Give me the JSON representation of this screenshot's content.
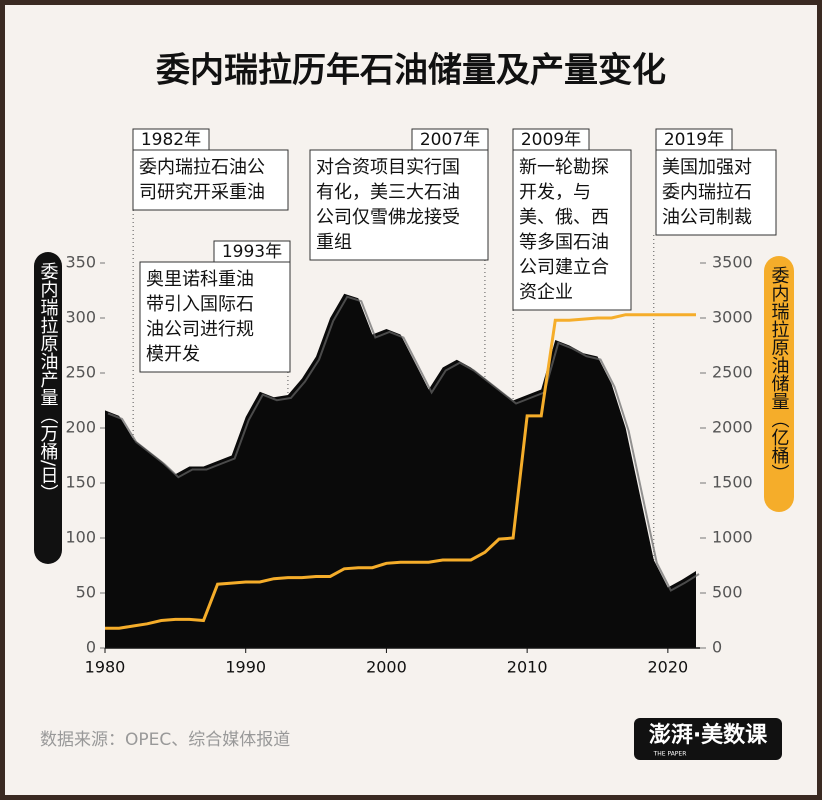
{
  "title": "委内瑞拉历年石油储量及产量变化",
  "source": "数据来源：OPEC、综合媒体报道",
  "logo": {
    "text": "澎湃·美数课",
    "subtext": "THE PAPER"
  },
  "chart_data": {
    "type": "combo",
    "x": [
      1980,
      1981,
      1982,
      1983,
      1984,
      1985,
      1986,
      1987,
      1988,
      1989,
      1990,
      1991,
      1992,
      1993,
      1994,
      1995,
      1996,
      1997,
      1998,
      1999,
      2000,
      2001,
      2002,
      2003,
      2004,
      2005,
      2006,
      2007,
      2008,
      2009,
      2010,
      2011,
      2012,
      2013,
      2014,
      2015,
      2016,
      2017,
      2018,
      2019,
      2020,
      2021,
      2022
    ],
    "xlim": [
      1980,
      2022
    ],
    "xticks": [
      1980,
      1990,
      2000,
      2010,
      2020
    ],
    "ylim": [
      0,
      350
    ],
    "yticks": [
      0,
      50,
      100,
      150,
      200,
      250,
      300,
      350
    ],
    "y2lim": [
      0,
      3500
    ],
    "y2ticks": [
      0,
      500,
      1000,
      1500,
      2000,
      2500,
      3000,
      3500
    ],
    "ylabel": "委内瑞拉原油产量（万桶/日）",
    "y2label": "委内瑞拉原油储量（亿桶）",
    "series": [
      {
        "name": "委内瑞拉原油产量",
        "type": "area",
        "color": "#0a0a0a",
        "values": [
          216,
          211,
          190,
          180,
          170,
          158,
          165,
          165,
          170,
          175,
          210,
          233,
          228,
          230,
          245,
          265,
          300,
          322,
          318,
          285,
          290,
          285,
          260,
          235,
          255,
          262,
          255,
          245,
          235,
          225,
          230,
          235,
          280,
          275,
          268,
          265,
          240,
          200,
          140,
          80,
          55,
          62,
          70
        ]
      },
      {
        "name": "委内瑞拉原油储量",
        "type": "line",
        "axis": "y2",
        "color": "#f5ad2a",
        "values": [
          180,
          180,
          200,
          220,
          250,
          260,
          260,
          250,
          580,
          590,
          600,
          600,
          630,
          640,
          640,
          650,
          650,
          720,
          730,
          730,
          770,
          780,
          780,
          780,
          800,
          800,
          800,
          870,
          990,
          1000,
          2110,
          2110,
          2980,
          2980,
          2990,
          3000,
          3000,
          3030,
          3030,
          3030,
          3030,
          3030,
          3030
        ]
      }
    ],
    "annotations": [
      {
        "x": 1982,
        "label": "1982年",
        "lines": [
          "委内瑞拉石油公",
          "司研究开采重油"
        ]
      },
      {
        "x": 1993,
        "label": "1993年",
        "lines": [
          "奥里诺科重油",
          "带引入国际石",
          "油公司进行规",
          "模开发"
        ]
      },
      {
        "x": 2007,
        "label": "2007年",
        "lines": [
          "对合资项目实行国",
          "有化，美三大石油",
          "公司仅雪佛龙接受",
          "重组"
        ]
      },
      {
        "x": 2009,
        "label": "2009年",
        "lines": [
          "新一轮勘探",
          "开发，与",
          "美、俄、西",
          "等多国石油",
          "公司建立合",
          "资企业"
        ]
      },
      {
        "x": 2019,
        "label": "2019年",
        "lines": [
          "美国加强对",
          "委内瑞拉石",
          "油公司制裁"
        ]
      }
    ]
  }
}
